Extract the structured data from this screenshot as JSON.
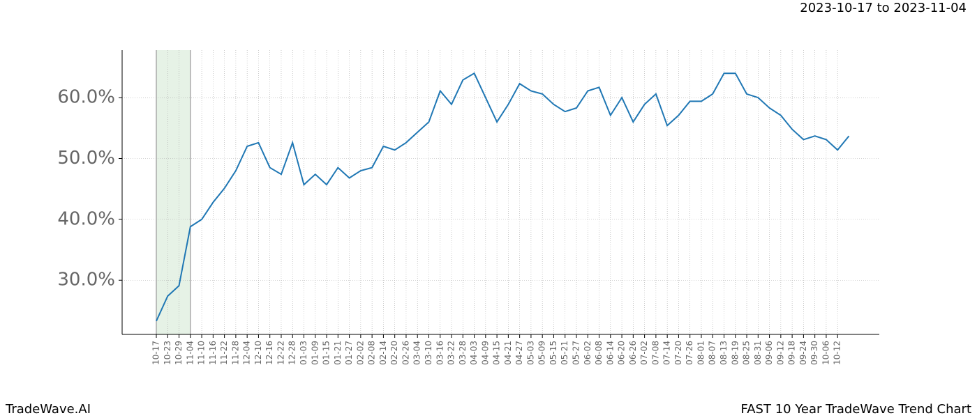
{
  "chart_data": {
    "type": "line",
    "subtitle": "2023-10-17 to 2023-11-04",
    "footer_left": "TradeWave.AI",
    "footer_right": "FAST 10 Year TradeWave Trend Chart",
    "categories": [
      "10-17",
      "10-23",
      "10-29",
      "11-04",
      "11-10",
      "11-16",
      "11-22",
      "11-28",
      "12-04",
      "12-10",
      "12-16",
      "12-22",
      "12-28",
      "01-03",
      "01-09",
      "01-15",
      "01-21",
      "01-27",
      "02-02",
      "02-08",
      "02-14",
      "02-20",
      "02-26",
      "03-04",
      "03-10",
      "03-16",
      "03-22",
      "03-28",
      "04-03",
      "04-09",
      "04-15",
      "04-21",
      "04-27",
      "05-03",
      "05-09",
      "05-15",
      "05-21",
      "05-27",
      "06-02",
      "06-08",
      "06-14",
      "06-20",
      "06-26",
      "07-02",
      "07-08",
      "07-14",
      "07-20",
      "07-26",
      "08-01",
      "08-07",
      "08-13",
      "08-19",
      "08-25",
      "08-31",
      "09-06",
      "09-12",
      "09-18",
      "09-24",
      "09-30",
      "10-06",
      "10-12",
      null
    ],
    "values": [
      23.3,
      27.4,
      29.1,
      38.8,
      40.0,
      42.8,
      45.1,
      48.0,
      52.0,
      52.6,
      48.5,
      47.4,
      52.6,
      45.7,
      47.4,
      45.7,
      48.5,
      46.8,
      48.0,
      48.5,
      52.0,
      51.4,
      52.6,
      54.3,
      56.0,
      61.1,
      58.9,
      62.9,
      64.0,
      60.0,
      56.0,
      58.9,
      62.3,
      61.1,
      60.6,
      58.9,
      57.7,
      58.3,
      61.1,
      61.7,
      57.1,
      60.0,
      56.0,
      58.9,
      60.6,
      55.4,
      57.1,
      59.4,
      59.4,
      60.6,
      64.0,
      64.0,
      60.6,
      60.0,
      58.3,
      57.1,
      54.8,
      53.1,
      53.7,
      53.1,
      51.4,
      53.7
    ],
    "color": "#1f77b4",
    "highlight": [
      "10-17",
      "11-04"
    ],
    "highlight_color": "#e6f2e6",
    "ylim": [
      21.1,
      67.8
    ],
    "yticks": [
      {
        "value": 30,
        "label": "30.0%"
      },
      {
        "value": 40,
        "label": "40.0%"
      },
      {
        "value": 50,
        "label": "50.0%"
      },
      {
        "value": 60,
        "label": "60.0%"
      }
    ],
    "grid": true
  }
}
